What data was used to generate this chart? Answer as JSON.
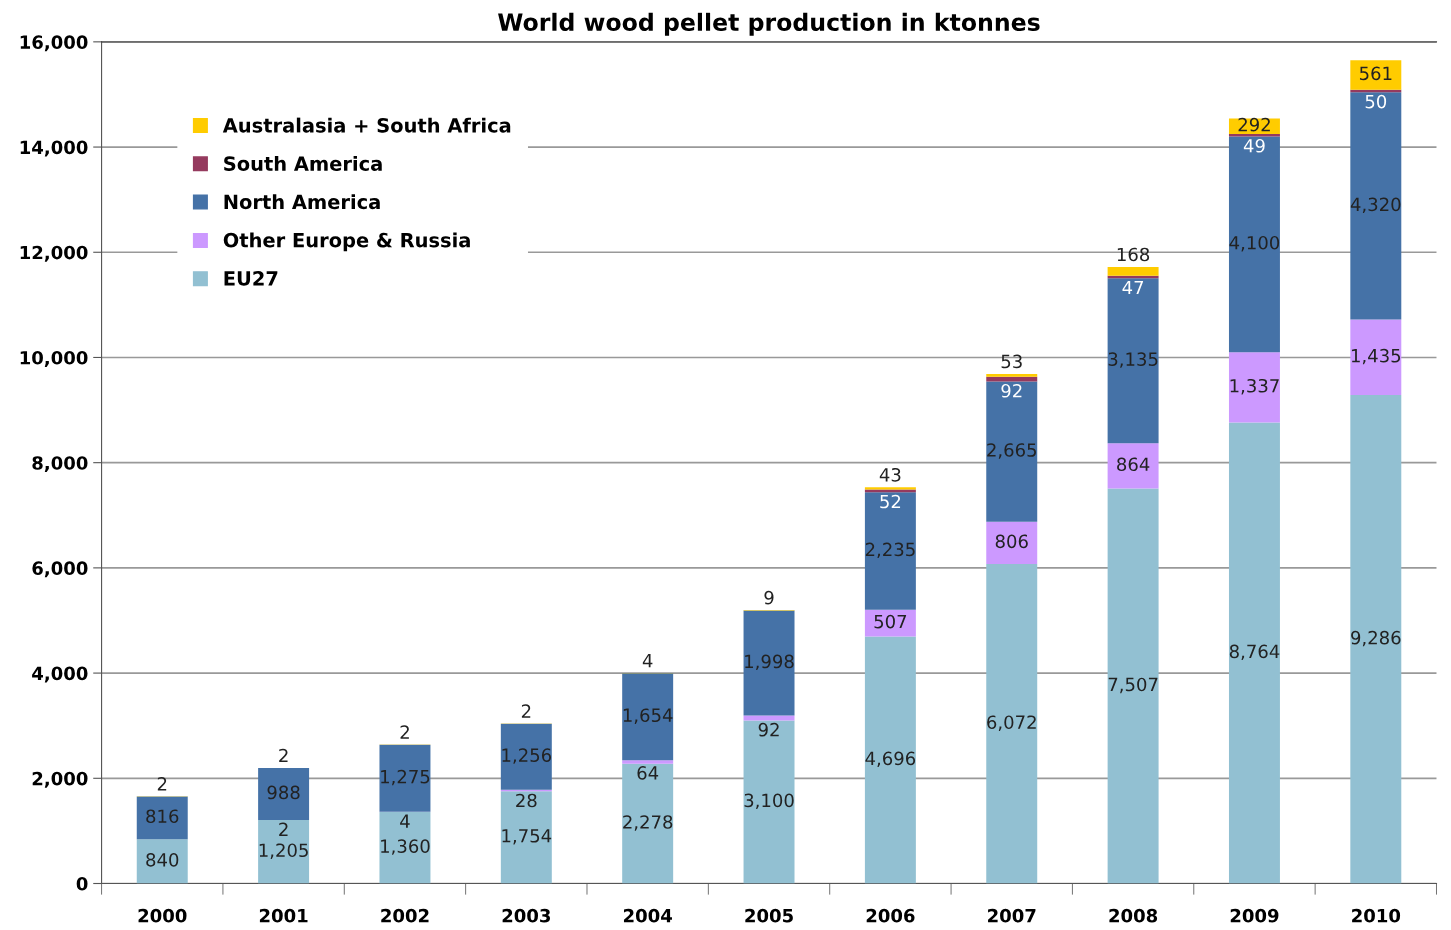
{
  "chart_data": {
    "type": "bar",
    "stacked": true,
    "title": "World wood pellet production in ktonnes",
    "categories": [
      "2000",
      "2001",
      "2002",
      "2003",
      "2004",
      "2005",
      "2006",
      "2007",
      "2008",
      "2009",
      "2010"
    ],
    "series": [
      {
        "name": "EU27",
        "color": "#92c0d2",
        "values": [
          840,
          1205,
          1360,
          1754,
          2278,
          3100,
          4696,
          6072,
          7507,
          8764,
          9286
        ],
        "value_labels": [
          "840",
          "1,205",
          "1,360",
          "1,754",
          "2,278",
          "3,100",
          "4,696",
          "6,072",
          "7,507",
          "8,764",
          "9,286"
        ]
      },
      {
        "name": "Other Europe & Russia",
        "color": "#cc99ff",
        "values": [
          null,
          2,
          4,
          28,
          64,
          92,
          507,
          806,
          864,
          1337,
          1435
        ],
        "value_labels": [
          null,
          "2",
          "4",
          "28",
          "64",
          "92",
          "507",
          "806",
          "864",
          "1,337",
          "1,435"
        ]
      },
      {
        "name": "North America",
        "color": "#4572a7",
        "values": [
          816,
          988,
          1275,
          1256,
          1654,
          1998,
          2235,
          2665,
          3135,
          4100,
          4320
        ],
        "value_labels": [
          "816",
          "988",
          "1,275",
          "1,256",
          "1,654",
          "1,998",
          "2,235",
          "2,665",
          "3,135",
          "4,100",
          "4,320"
        ]
      },
      {
        "name": "South America",
        "color": "#953a5e",
        "values": [
          null,
          null,
          null,
          null,
          null,
          null,
          52,
          92,
          47,
          49,
          50
        ],
        "value_labels": [
          null,
          null,
          null,
          null,
          null,
          null,
          "52",
          "92",
          "47",
          "49",
          "50"
        ]
      },
      {
        "name": "Australasia + South Africa",
        "color": "#ffcc00",
        "values": [
          2,
          2,
          2,
          2,
          4,
          9,
          43,
          53,
          168,
          292,
          561
        ],
        "value_labels": [
          "2",
          "2",
          "2",
          "2",
          "4",
          "9",
          "43",
          "53",
          "168",
          "292",
          "561"
        ]
      }
    ],
    "ylim": [
      0,
      16000
    ],
    "yticks": [
      {
        "value": 0,
        "label": "0"
      },
      {
        "value": 2000,
        "label": "2,000"
      },
      {
        "value": 4000,
        "label": "4,000"
      },
      {
        "value": 6000,
        "label": "6,000"
      },
      {
        "value": 8000,
        "label": "8,000"
      },
      {
        "value": 10000,
        "label": "10,000"
      },
      {
        "value": 12000,
        "label": "12,000"
      },
      {
        "value": 14000,
        "label": "14,000"
      },
      {
        "value": 16000,
        "label": "16,000"
      }
    ],
    "grid": "y",
    "legend": "top left"
  }
}
